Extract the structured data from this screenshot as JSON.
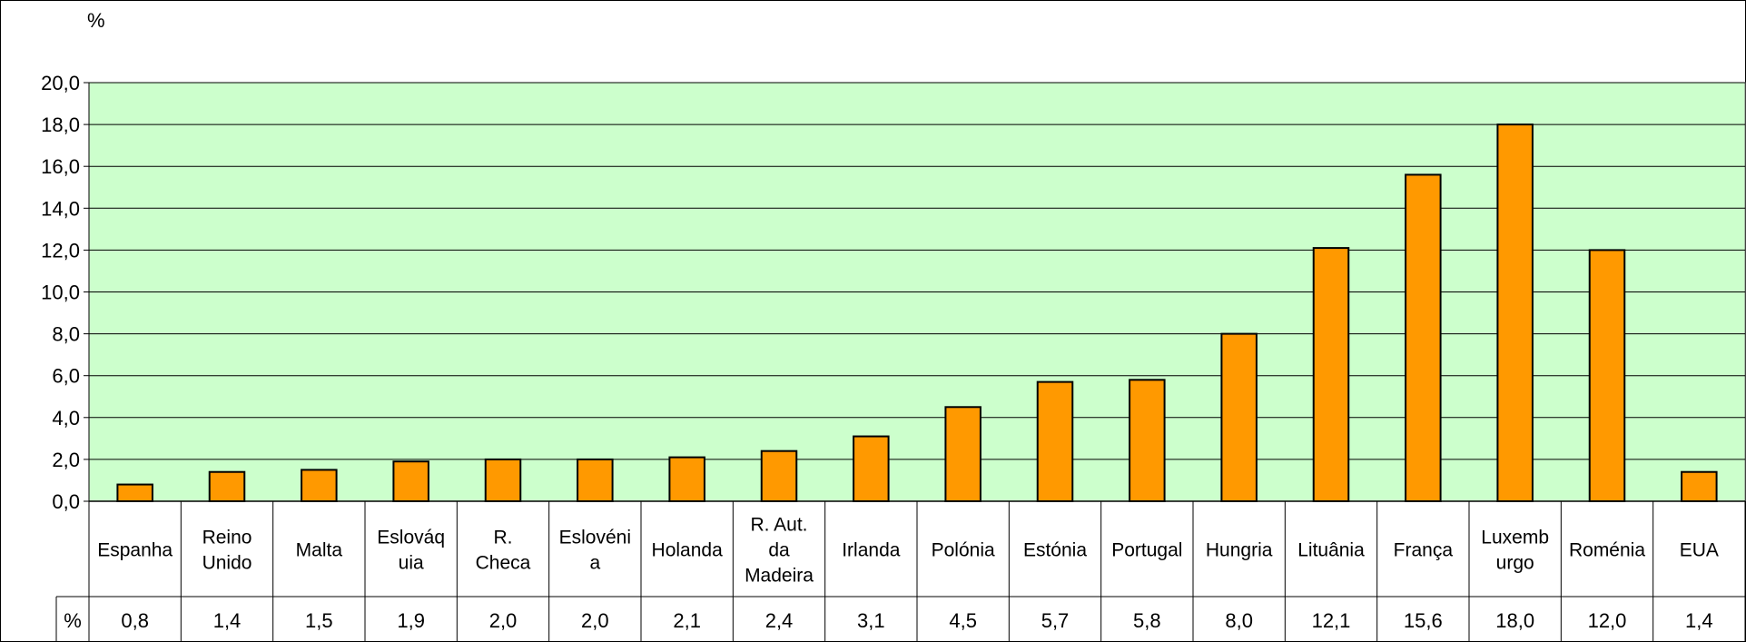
{
  "chart_data": {
    "type": "bar",
    "unit_label": "%",
    "table_row_label": "%",
    "categories": [
      [
        "Espanha"
      ],
      [
        "Reino",
        "Unido"
      ],
      [
        "Malta"
      ],
      [
        "Eslováq",
        "uia"
      ],
      [
        "R.",
        "Checa"
      ],
      [
        "Eslovéni",
        "a"
      ],
      [
        "Holanda"
      ],
      [
        "R. Aut.",
        "da",
        "Madeira"
      ],
      [
        "Irlanda"
      ],
      [
        "Polónia"
      ],
      [
        "Estónia"
      ],
      [
        "Portugal"
      ],
      [
        "Hungria"
      ],
      [
        "Lituânia"
      ],
      [
        "França"
      ],
      [
        "Luxemb",
        "urgo"
      ],
      [
        "Roménia"
      ],
      [
        "EUA"
      ]
    ],
    "values": [
      0.8,
      1.4,
      1.5,
      1.9,
      2.0,
      2.0,
      2.1,
      2.4,
      3.1,
      4.5,
      5.7,
      5.8,
      8.0,
      12.1,
      15.6,
      18.0,
      12.0,
      1.4
    ],
    "value_labels": [
      "0,8",
      "1,4",
      "1,5",
      "1,9",
      "2,0",
      "2,0",
      "2,1",
      "2,4",
      "3,1",
      "4,5",
      "5,7",
      "5,8",
      "8,0",
      "12,1",
      "15,6",
      "18,0",
      "12,0",
      "1,4"
    ],
    "y_ticks": [
      "0,0",
      "2,0",
      "4,0",
      "6,0",
      "8,0",
      "10,0",
      "12,0",
      "14,0",
      "16,0",
      "18,0",
      "20,0"
    ],
    "ylim": [
      0,
      20
    ],
    "grid": true,
    "colors": {
      "plot_background": "#ccffcc",
      "bar_fill": "#ff9900",
      "bar_stroke": "#000000",
      "grid": "#000000"
    }
  }
}
